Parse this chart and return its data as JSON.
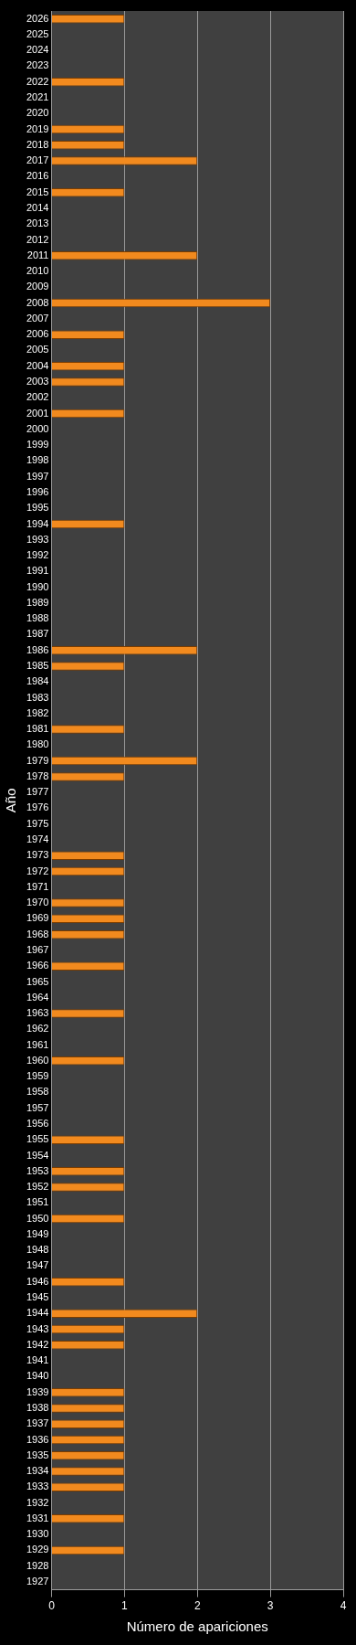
{
  "chart_data": {
    "type": "bar",
    "orientation": "horizontal",
    "xlabel": "Número de apariciones",
    "ylabel": "Año",
    "categories": [
      "2026",
      "2025",
      "2024",
      "2023",
      "2022",
      "2021",
      "2020",
      "2019",
      "2018",
      "2017",
      "2016",
      "2015",
      "2014",
      "2013",
      "2012",
      "2011",
      "2010",
      "2009",
      "2008",
      "2007",
      "2006",
      "2005",
      "2004",
      "2003",
      "2002",
      "2001",
      "2000",
      "1999",
      "1998",
      "1997",
      "1996",
      "1995",
      "1994",
      "1993",
      "1992",
      "1991",
      "1990",
      "1989",
      "1988",
      "1987",
      "1986",
      "1985",
      "1984",
      "1983",
      "1982",
      "1981",
      "1980",
      "1979",
      "1978",
      "1977",
      "1976",
      "1975",
      "1974",
      "1973",
      "1972",
      "1971",
      "1970",
      "1969",
      "1968",
      "1967",
      "1966",
      "1965",
      "1964",
      "1963",
      "1962",
      "1961",
      "1960",
      "1959",
      "1958",
      "1957",
      "1956",
      "1955",
      "1954",
      "1953",
      "1952",
      "1951",
      "1950",
      "1949",
      "1948",
      "1947",
      "1946",
      "1945",
      "1944",
      "1943",
      "1942",
      "1941",
      "1940",
      "1939",
      "1938",
      "1937",
      "1936",
      "1935",
      "1934",
      "1933",
      "1932",
      "1931",
      "1930",
      "1929",
      "1928",
      "1927"
    ],
    "values": [
      1,
      0,
      0,
      0,
      1,
      0,
      0,
      1,
      1,
      2,
      0,
      1,
      0,
      0,
      0,
      2,
      0,
      0,
      3,
      0,
      1,
      0,
      1,
      1,
      0,
      1,
      0,
      0,
      0,
      0,
      0,
      0,
      1,
      0,
      0,
      0,
      0,
      0,
      0,
      0,
      2,
      1,
      0,
      0,
      0,
      1,
      0,
      2,
      1,
      0,
      0,
      0,
      0,
      1,
      1,
      0,
      1,
      1,
      1,
      0,
      1,
      0,
      0,
      1,
      0,
      0,
      1,
      0,
      0,
      0,
      0,
      1,
      0,
      1,
      1,
      0,
      1,
      0,
      0,
      0,
      1,
      0,
      2,
      1,
      1,
      0,
      0,
      1,
      1,
      1,
      1,
      1,
      1,
      1,
      0,
      1,
      0,
      1,
      0,
      0
    ],
    "color": "#f28a1e",
    "xlim": [
      0,
      4
    ],
    "xticks": [
      0,
      1,
      2,
      3,
      4
    ],
    "grid": "x"
  }
}
